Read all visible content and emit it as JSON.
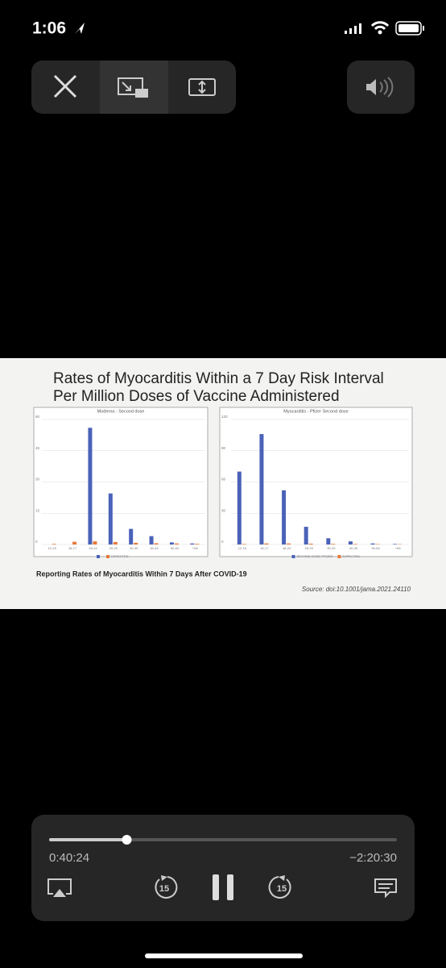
{
  "status_bar": {
    "time": "1:06"
  },
  "slide": {
    "title_line1": "Rates of Myocarditis Within a 7 Day Risk Interval",
    "title_line2": "Per Million Doses of Vaccine Administered",
    "caption": "Reporting Rates of Myocarditis Within 7 Days After COVID-19",
    "source": "Source: doi:10.1001/jama.2021.24110"
  },
  "chart_data": [
    {
      "type": "bar",
      "title": "Moderna - Second dose",
      "categories": [
        "12-15",
        "16-17",
        "18-24",
        "25-29",
        "30-39",
        "40-49",
        "50-64",
        "+65"
      ],
      "series": [
        {
          "color": "#4a62b8",
          "values": [
            0,
            0,
            56,
            24.5,
            7.5,
            4,
            1,
            0.5
          ]
        },
        {
          "name": "EXPECTED",
          "color": "#e8783a",
          "values": [
            0.3,
            1.3,
            1.5,
            1.2,
            0.8,
            0.6,
            0.5,
            0.3
          ]
        }
      ],
      "ylim": [
        0,
        60
      ],
      "yticks": [
        0,
        15,
        30,
        45,
        60
      ],
      "grid": true
    },
    {
      "type": "bar",
      "title": "Myocarditis - Pfizer Second dose",
      "categories": [
        "12-15",
        "16-17",
        "18-24",
        "25-29",
        "30-39",
        "40-49",
        "50-64",
        "+65"
      ],
      "series": [
        {
          "name": "SECOND DOSE PFIZER",
          "color": "#4a62b8",
          "values": [
            70,
            106,
            52,
            17,
            6,
            3,
            1,
            0.5
          ]
        },
        {
          "name": "EXPECTED",
          "color": "#e8783a",
          "values": [
            0.5,
            1,
            1,
            0.8,
            0.6,
            0.5,
            0.4,
            0.3
          ]
        }
      ],
      "ylim": [
        0,
        120
      ],
      "yticks": [
        0,
        30,
        60,
        90,
        120
      ],
      "grid": true
    }
  ],
  "player": {
    "elapsed": "0:40:24",
    "remaining": "−2:20:30",
    "skip_back": "15",
    "skip_forward": "15"
  }
}
